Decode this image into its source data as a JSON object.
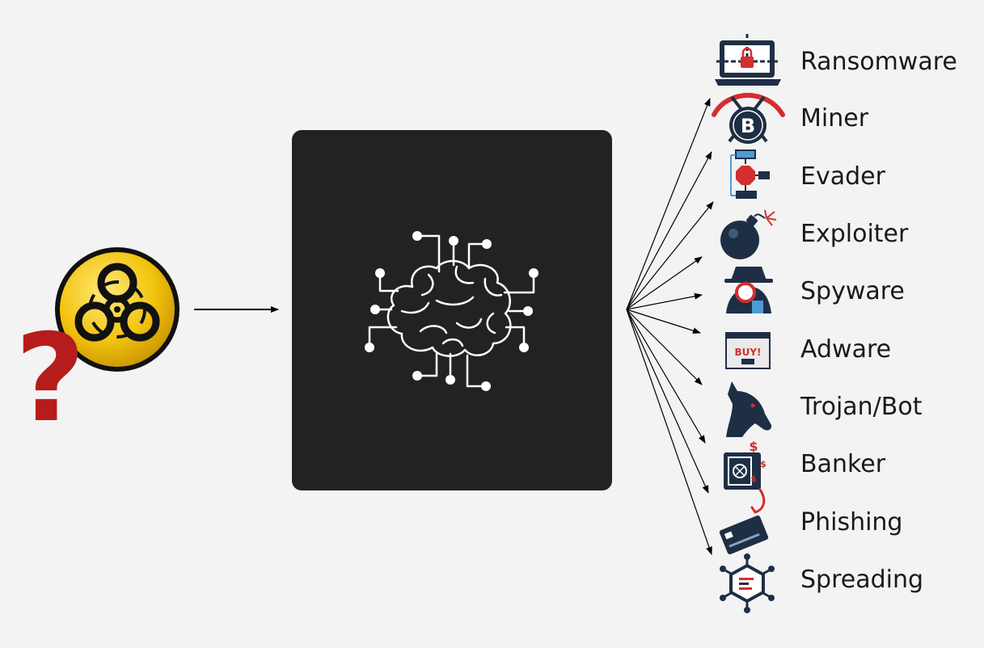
{
  "categories": [
    {
      "label": "Ransomware",
      "icon": "laptop-lock-icon"
    },
    {
      "label": "Miner",
      "icon": "bitcoin-pickaxe-icon"
    },
    {
      "label": "Evader",
      "icon": "flowchart-stop-icon"
    },
    {
      "label": "Exploiter",
      "icon": "bomb-icon"
    },
    {
      "label": "Spyware",
      "icon": "spy-agent-icon"
    },
    {
      "label": "Adware",
      "icon": "buy-popup-icon"
    },
    {
      "label": "Trojan/Bot",
      "icon": "horse-head-icon"
    },
    {
      "label": "Banker",
      "icon": "safe-money-icon"
    },
    {
      "label": "Phishing",
      "icon": "hooked-card-icon"
    },
    {
      "label": "Spreading",
      "icon": "virus-network-icon"
    }
  ],
  "input": {
    "icons": [
      "biohazard-icon",
      "question-mark-icon"
    ]
  },
  "model": {
    "icon": "ai-brain-icon"
  },
  "colors": {
    "background": "#f3f3f3",
    "panel": "#222222",
    "accent_red": "#b71c1c",
    "biohazard_yellow": "#f2c40f",
    "icon_navy": "#1e2f45"
  }
}
